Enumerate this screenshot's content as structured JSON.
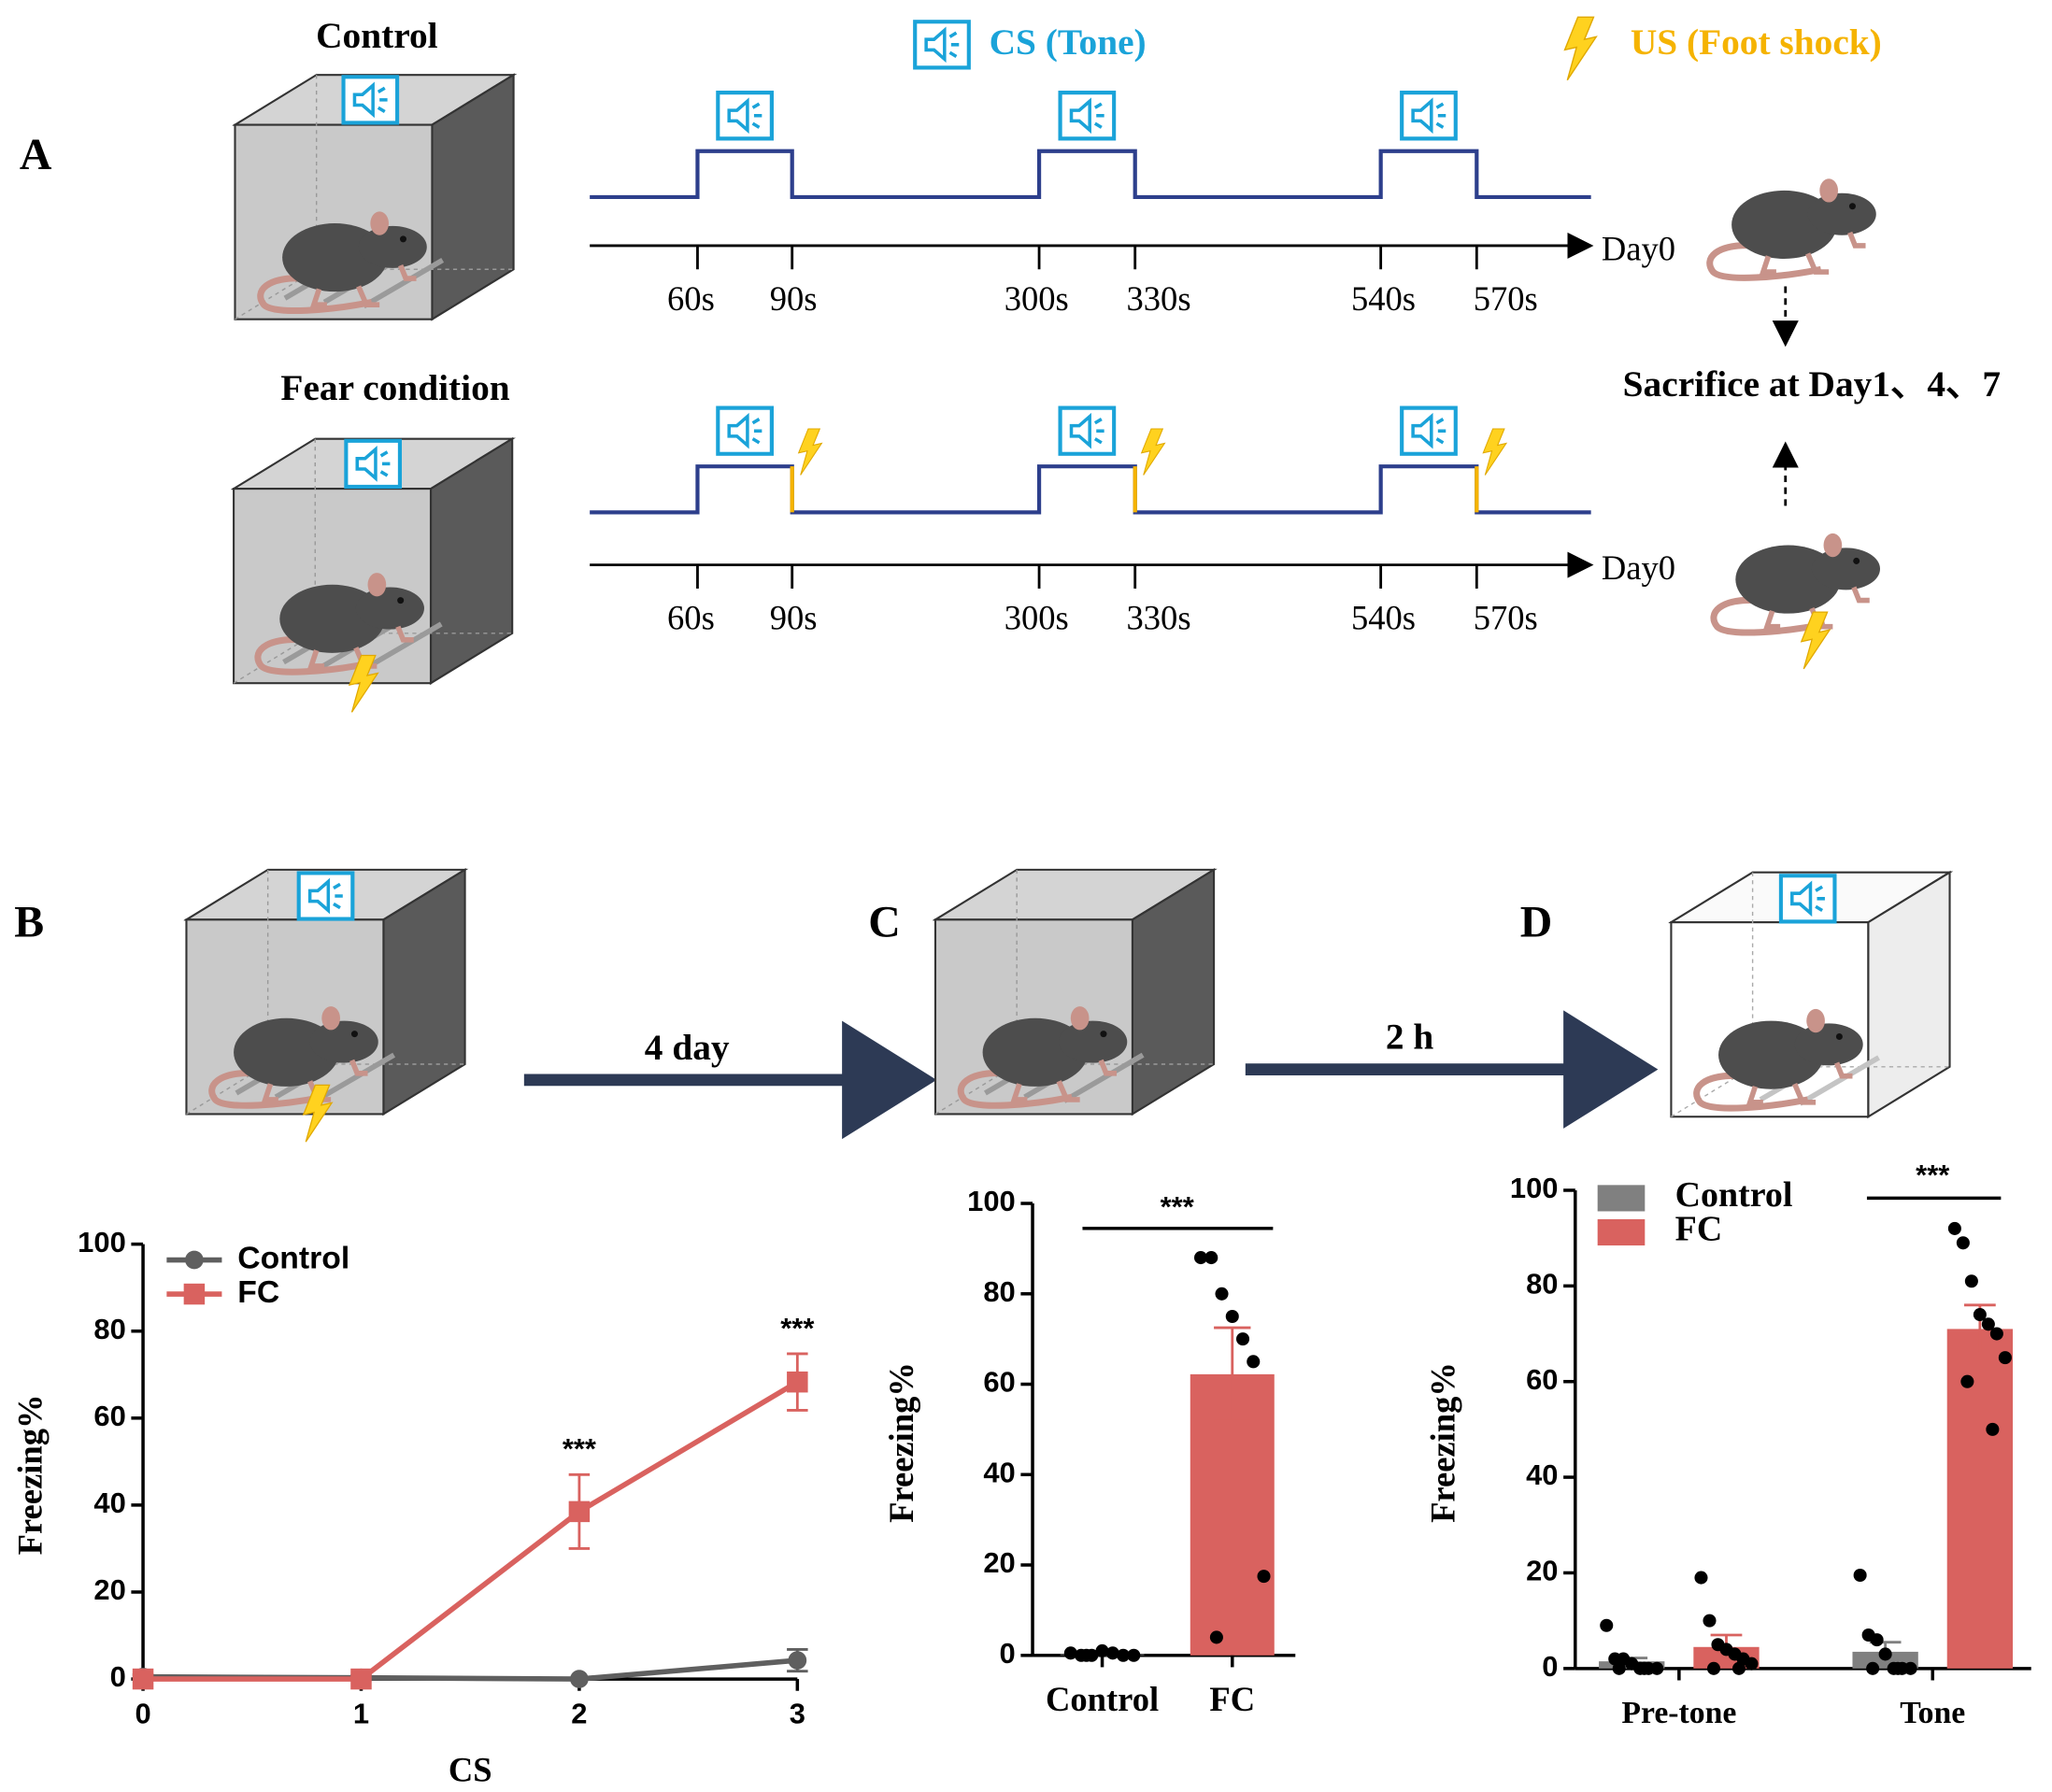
{
  "panel_labels": [
    "A",
    "B",
    "C",
    "D"
  ],
  "diagram": {
    "control_label": "Control",
    "fear_label": "Fear condition",
    "cs_legend": "CS (Tone)",
    "us_legend": "US (Foot shock)",
    "control_timeline": {
      "times": [
        "60s",
        "90s",
        "300s",
        "330s",
        "540s",
        "570s"
      ],
      "day": "Day0"
    },
    "fear_timeline": {
      "times": [
        "60s",
        "90s",
        "300s",
        "330s",
        "540s",
        "570s"
      ],
      "day": "Day0"
    },
    "sacrifice": "Sacrifice at Day1、4、7",
    "interval_1": "4 day",
    "interval_2": "2 h"
  },
  "chart_data": [
    {
      "type": "line",
      "xlabel": "CS",
      "ylabel": "Freezing%",
      "x": [
        0,
        1,
        2,
        3
      ],
      "xlim": [
        0,
        3
      ],
      "xticks": [
        0,
        1,
        2,
        3
      ],
      "ylim": [
        0,
        100
      ],
      "yticks": [
        0,
        20,
        40,
        60,
        80,
        100
      ],
      "legend": "upper left",
      "series": [
        {
          "name": "Control",
          "color": "#5f5f5f",
          "marker": "circle",
          "values": [
            0.5,
            0.3,
            0,
            4.3
          ],
          "errors": [
            0.5,
            0.5,
            0,
            2.5
          ]
        },
        {
          "name": "FC",
          "color": "#d9625f",
          "marker": "square",
          "values": [
            0,
            0,
            38.5,
            68.3
          ],
          "errors": [
            0,
            0,
            8.5,
            6.5
          ]
        }
      ],
      "annotations": [
        {
          "x": 2,
          "text": "***"
        },
        {
          "x": 3,
          "text": "***"
        }
      ]
    },
    {
      "type": "bar",
      "ylabel": "Freezing%",
      "categories": [
        "Control",
        "FC"
      ],
      "ylim": [
        0,
        100
      ],
      "yticks": [
        0,
        20,
        40,
        60,
        80,
        100
      ],
      "values": [
        0.3,
        62.2
      ],
      "errors": [
        0.3,
        10.3
      ],
      "colors": [
        "#5f5f5f",
        "#d9625f"
      ],
      "points": [
        [
          0.5,
          0,
          0,
          1,
          0.5,
          0,
          0,
          0
        ],
        [
          88,
          88,
          80,
          75,
          70,
          65,
          17.5,
          4
        ]
      ],
      "annotation": "***"
    },
    {
      "type": "grouped_bar",
      "ylabel": "Freezing%",
      "categories": [
        "Pre-tone",
        "Tone"
      ],
      "ylim": [
        0,
        100
      ],
      "yticks": [
        0,
        20,
        40,
        60,
        80,
        100
      ],
      "legend": "upper left",
      "series": [
        {
          "name": "Control",
          "color": "#808080",
          "values": [
            1.5,
            3.5
          ],
          "errors": [
            0.7,
            2
          ],
          "points": [
            [
              9,
              2,
              2,
              1,
              0,
              0,
              0,
              0,
              0
            ],
            [
              19.5,
              7,
              6,
              3,
              0,
              0,
              0,
              0,
              0
            ]
          ]
        },
        {
          "name": "FC",
          "color": "#d9625f",
          "values": [
            4.5,
            71
          ],
          "errors": [
            2.5,
            5
          ],
          "points": [
            [
              19,
              10,
              5,
              4,
              3,
              2,
              1,
              0,
              0
            ],
            [
              92,
              89,
              81,
              74,
              72,
              70,
              65,
              60,
              50
            ]
          ]
        }
      ],
      "annotation": "***"
    }
  ]
}
